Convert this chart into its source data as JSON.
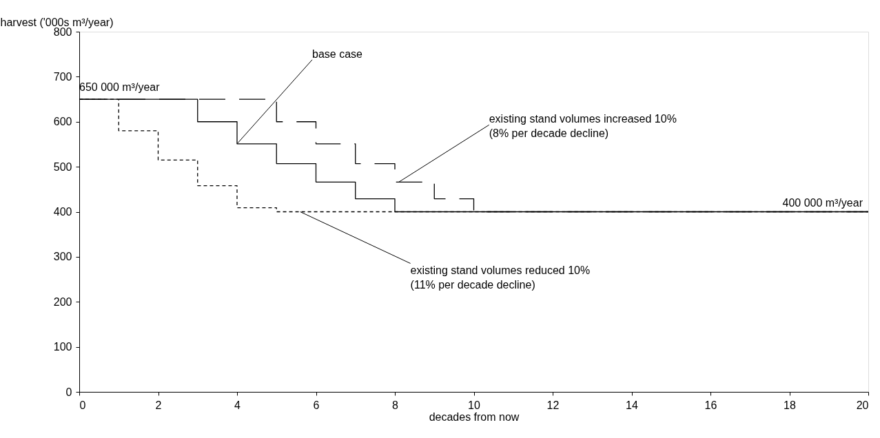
{
  "chart_data": {
    "type": "step",
    "xlabel": "decades from now",
    "ylabel": "harvest ('000s m³/year)",
    "xlim": [
      0,
      20
    ],
    "xticks": [
      0,
      2,
      4,
      6,
      8,
      10,
      12,
      14,
      16,
      18,
      20
    ],
    "ylim": [
      0,
      800
    ],
    "yticks": [
      0,
      100,
      200,
      300,
      400,
      500,
      600,
      700,
      800
    ],
    "grid": false,
    "marker": "none",
    "series": [
      {
        "color": "#000000",
        "line_style": "solid",
        "x": [
          0,
          3,
          4,
          5,
          6,
          7,
          8,
          20
        ],
        "values": [
          650,
          600,
          551,
          507,
          466,
          429,
          400,
          400
        ]
      },
      {
        "color": "#000000",
        "line_style": "dashed",
        "x": [
          0,
          5,
          6,
          7,
          8,
          9,
          10,
          20
        ],
        "values": [
          650,
          600,
          551,
          507,
          466,
          429,
          400,
          400
        ]
      },
      {
        "color": "#000000",
        "line_style": "dotted",
        "x": [
          0,
          1,
          2,
          3,
          4,
          5,
          20
        ],
        "values": [
          650,
          580,
          515,
          458,
          409,
          400,
          400
        ]
      }
    ],
    "annotations": [
      {
        "text": "650 000 m³/year",
        "x": 0,
        "y": 650
      },
      {
        "text": "base case",
        "x": 4,
        "y": 551
      },
      {
        "text": "existing stand volumes increased 10%\n(8% per decade decline)",
        "x": 8.1,
        "y": 466
      },
      {
        "text": "400 000 m³/year",
        "x": 20,
        "y": 400
      },
      {
        "text": "existing stand volumes reduced 10%\n(11% per decade decline)",
        "x": 5.6,
        "y": 400
      }
    ]
  }
}
